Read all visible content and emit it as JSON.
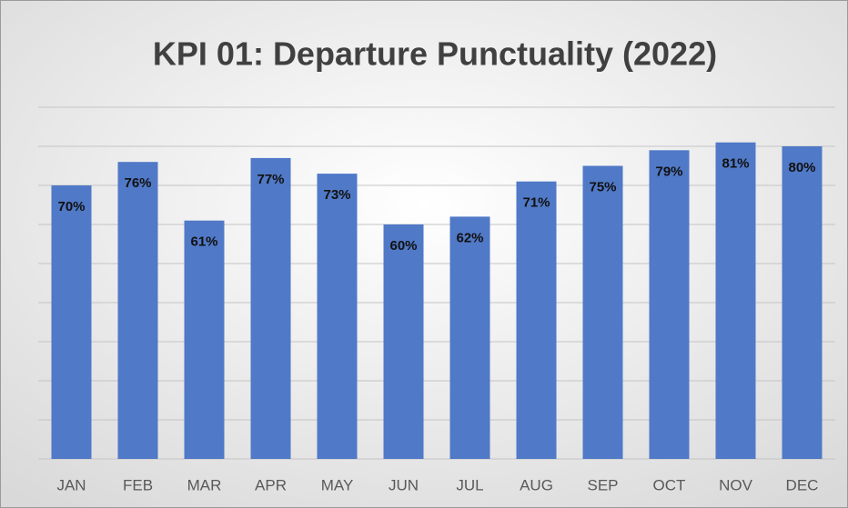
{
  "chart_data": {
    "type": "bar",
    "title": "KPI 01: Departure Punctuality (2022)",
    "categories": [
      "JAN",
      "FEB",
      "MAR",
      "APR",
      "MAY",
      "JUN",
      "JUL",
      "AUG",
      "SEP",
      "OCT",
      "NOV",
      "DEC"
    ],
    "values": [
      70,
      76,
      61,
      77,
      73,
      60,
      62,
      71,
      75,
      79,
      81,
      80
    ],
    "value_labels": [
      "70%",
      "76%",
      "61%",
      "77%",
      "73%",
      "60%",
      "62%",
      "71%",
      "75%",
      "79%",
      "81%",
      "80%"
    ],
    "color": "#5079c7",
    "ylim": [
      0,
      90
    ],
    "yticks": [
      0,
      10,
      20,
      30,
      40,
      50,
      60,
      70,
      80,
      90
    ],
    "grid": true
  }
}
